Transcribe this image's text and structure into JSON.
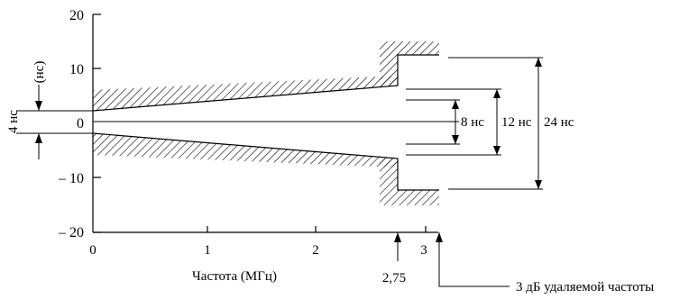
{
  "chart_data": {
    "type": "line",
    "y_ticks": [
      "20",
      "10",
      "0",
      "– 10",
      "– 20"
    ],
    "x_ticks": [
      "0",
      "1",
      "2",
      "3"
    ],
    "y_unit": "(нс)",
    "y_side_label": "4 нс",
    "xlabel": "Частота (МГц)",
    "marker_x": "2,75",
    "cutoff_note": "3 дБ удаляемой частоты",
    "dimensions": [
      "8 нс",
      "12 нс",
      "24 нс"
    ],
    "xlim": [
      0,
      3.1
    ],
    "ylim": [
      -20,
      20
    ],
    "upper_limit": {
      "x": [
        0,
        2.75,
        2.75,
        3.1
      ],
      "y": [
        2.5,
        6.5,
        12.5,
        12.5
      ]
    },
    "lower_limit": {
      "x": [
        0,
        2.75,
        2.75,
        3.1
      ],
      "y": [
        -2.5,
        -6.5,
        -12.5,
        -12.5
      ]
    },
    "hatched_bands": [
      "upper",
      "lower"
    ]
  }
}
